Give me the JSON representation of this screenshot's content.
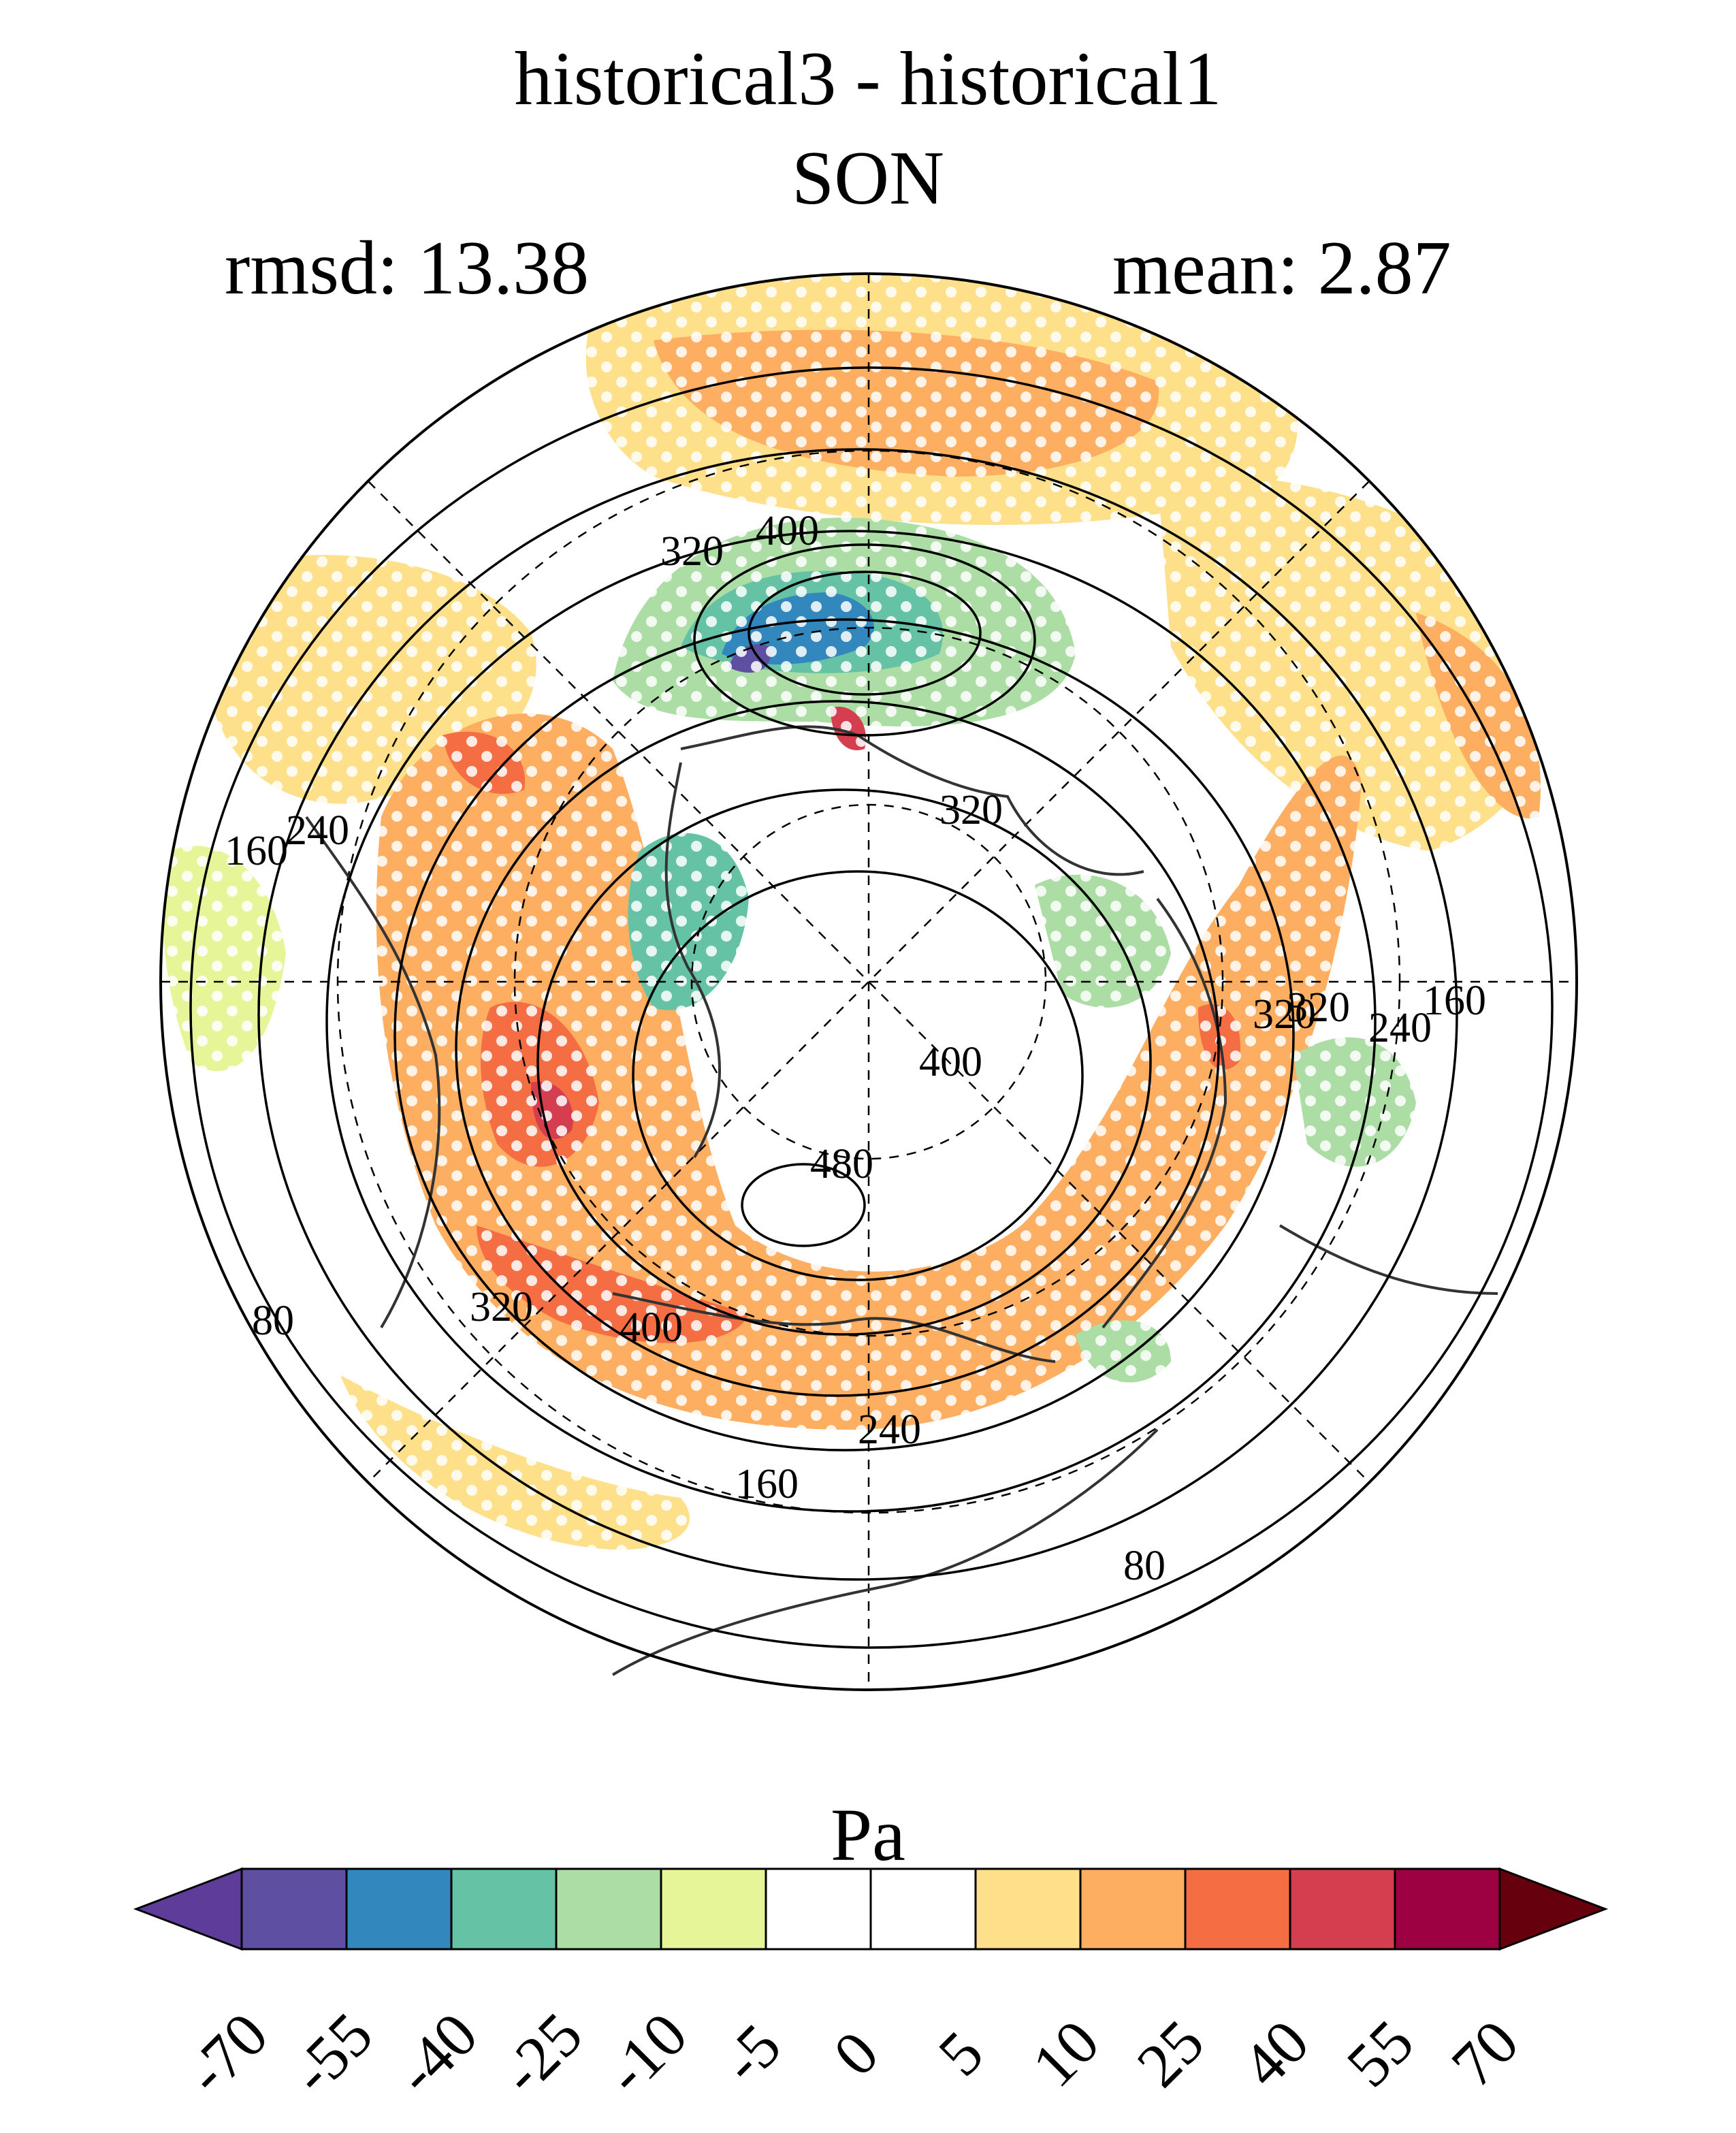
{
  "title": "historical3 - historical1",
  "season": "SON",
  "rmsd_label": "rmsd: 13.38",
  "mean_label": "mean: 2.87",
  "units": "Pa",
  "colorbar": {
    "levels": [
      "-70",
      "-55",
      "-40",
      "-25",
      "-10",
      "-5",
      "0",
      "5",
      "10",
      "25",
      "40",
      "55",
      "70"
    ],
    "colors": [
      "#5e3c99",
      "#5e4fa2",
      "#3288bd",
      "#66c2a5",
      "#abdda4",
      "#e6f598",
      "#ffffff",
      "#ffffff",
      "#fee08b",
      "#fdae61",
      "#f46d43",
      "#d53e4f",
      "#9e0142",
      "#67000d"
    ]
  },
  "contour_labels": [
    "160",
    "240",
    "320",
    "400",
    "320",
    "320",
    "400",
    "480",
    "320",
    "400",
    "240",
    "160",
    "80",
    "80",
    "160",
    "240",
    "320"
  ],
  "map": {
    "projection": "polar stereographic",
    "field": "SON stress difference",
    "stippling": "significance"
  }
}
